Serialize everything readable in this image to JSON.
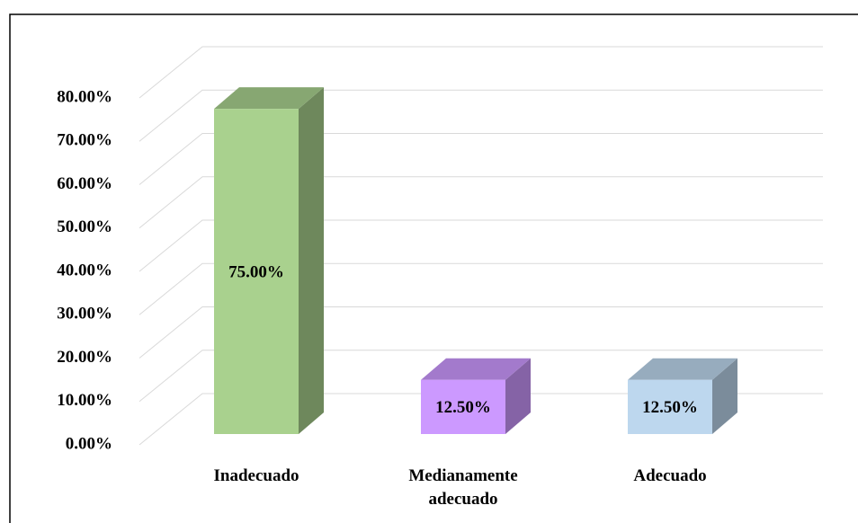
{
  "chart_data": {
    "type": "bar3d",
    "categories": [
      "Inadecuado",
      "Medianamente adecuado",
      "Adecuado"
    ],
    "values": [
      75,
      12.5,
      12.5
    ],
    "value_labels": [
      "75.00%",
      "12.50%",
      "12.50%"
    ],
    "colors": [
      "#a9d18e",
      "#cc99ff",
      "#bdd7ee"
    ],
    "ylim": [
      0,
      80
    ],
    "yticks": [
      {
        "value": 0,
        "label": "0.00%"
      },
      {
        "value": 10,
        "label": "10.00%"
      },
      {
        "value": 20,
        "label": "20.00%"
      },
      {
        "value": 30,
        "label": "30.00%"
      },
      {
        "value": 40,
        "label": "40.00%"
      },
      {
        "value": 50,
        "label": "50.00%"
      },
      {
        "value": 60,
        "label": "60.00%"
      },
      {
        "value": 70,
        "label": "70.00%"
      },
      {
        "value": 80,
        "label": "80.00%"
      }
    ],
    "grid": true
  }
}
